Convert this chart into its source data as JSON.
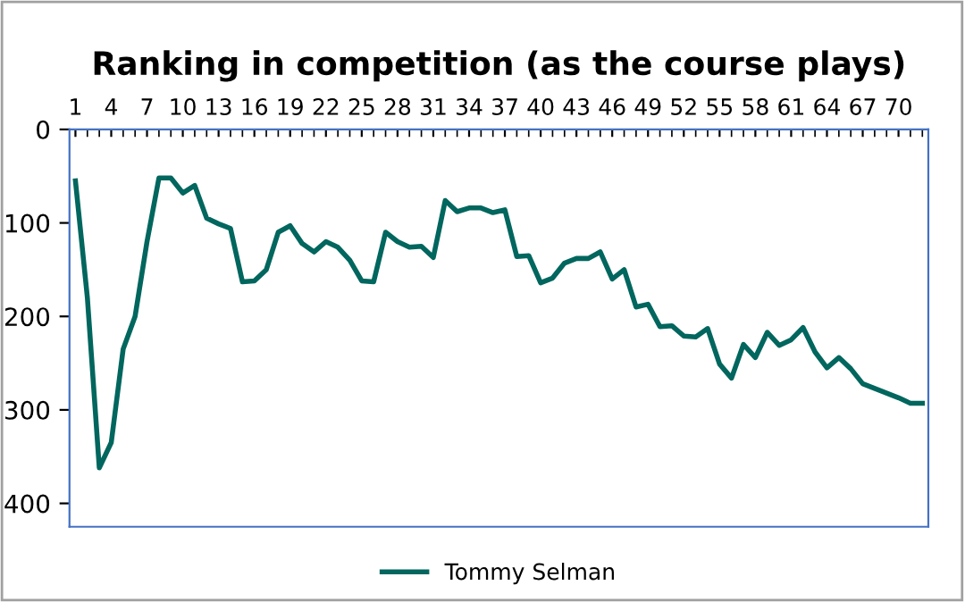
{
  "chart_data": {
    "type": "line",
    "title": "Ranking in competition (as the course plays)",
    "categories": [
      "1",
      null,
      null,
      "4",
      null,
      null,
      "7",
      null,
      null,
      "10",
      null,
      null,
      "13",
      null,
      null,
      "16",
      null,
      null,
      "19",
      null,
      null,
      "22",
      null,
      null,
      "25",
      null,
      null,
      "28",
      null,
      null,
      "31",
      null,
      null,
      "34",
      null,
      null,
      "37",
      null,
      null,
      "40",
      null,
      null,
      "43",
      null,
      null,
      "46",
      null,
      null,
      "49",
      null,
      null,
      "52",
      null,
      null,
      "55",
      null,
      null,
      "58",
      null,
      null,
      "61",
      null,
      null,
      "64",
      null,
      null,
      "67",
      null,
      null,
      "70",
      null,
      null
    ],
    "series": [
      {
        "name": "Tommy Selman",
        "color": "#00665e",
        "values": [
          55,
          180,
          362,
          335,
          235,
          200,
          120,
          52,
          52,
          68,
          60,
          95,
          101,
          106,
          163,
          162,
          150,
          110,
          103,
          122,
          131,
          120,
          126,
          140,
          162,
          163,
          110,
          120,
          126,
          125,
          137,
          76,
          88,
          84,
          84,
          89,
          86,
          136,
          135,
          164,
          159,
          143,
          138,
          138,
          131,
          160,
          150,
          190,
          187,
          211,
          210,
          221,
          222,
          213,
          251,
          266,
          230,
          244,
          217,
          231,
          225,
          212,
          238,
          255,
          244,
          256,
          272,
          277,
          282,
          287,
          293,
          293
        ]
      }
    ],
    "ylim": [
      425,
      0
    ],
    "yticks": [
      0,
      100,
      200,
      300,
      400
    ],
    "grid": false,
    "legend": "bottom",
    "marker": "none",
    "line_style": "solid"
  }
}
